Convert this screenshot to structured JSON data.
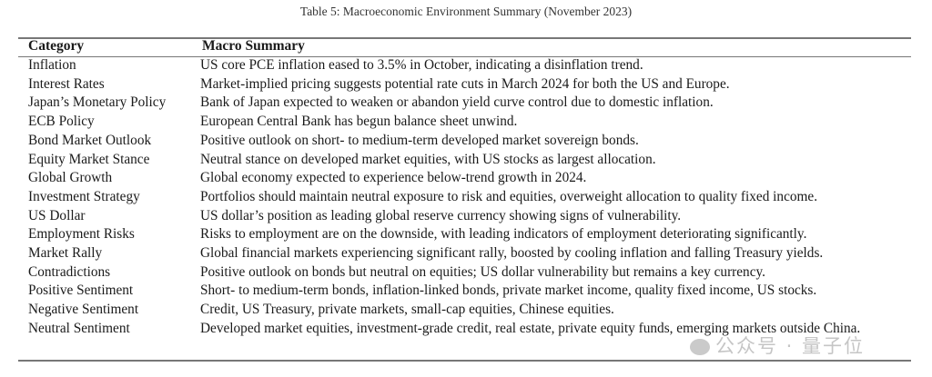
{
  "caption": "Table 5: Macroeconomic Environment Summary (November 2023)",
  "headers": {
    "category": "Category",
    "summary": "Macro Summary"
  },
  "rows": [
    {
      "category": "Inflation",
      "summary": "US core PCE inflation eased to 3.5% in October, indicating a disinflation trend."
    },
    {
      "category": "Interest Rates",
      "summary": "Market-implied pricing suggests potential rate cuts in March 2024 for both the US and Europe."
    },
    {
      "category": "Japan’s Monetary Policy",
      "summary": "Bank of Japan expected to weaken or abandon yield curve control due to domestic inflation."
    },
    {
      "category": "ECB Policy",
      "summary": "European Central Bank has begun balance sheet unwind."
    },
    {
      "category": "Bond Market Outlook",
      "summary": "Positive outlook on short- to medium-term developed market sovereign bonds."
    },
    {
      "category": "Equity Market Stance",
      "summary": "Neutral stance on developed market equities, with US stocks as largest allocation."
    },
    {
      "category": "Global Growth",
      "summary": "Global economy expected to experience below-trend growth in 2024."
    },
    {
      "category": "Investment Strategy",
      "summary": "Portfolios should maintain neutral exposure to risk and equities, overweight allocation to quality fixed income."
    },
    {
      "category": "US Dollar",
      "summary": "US dollar’s position as leading global reserve currency showing signs of vulnerability."
    },
    {
      "category": "Employment Risks",
      "summary": "Risks to employment are on the downside, with leading indicators of employment deteriorating significantly."
    },
    {
      "category": "Market Rally",
      "summary": "Global financial markets experiencing significant rally, boosted by cooling inflation and falling Treasury yields."
    },
    {
      "category": "Contradictions",
      "summary": "Positive outlook on bonds but neutral on equities; US dollar vulnerability but remains a key currency."
    },
    {
      "category": "Positive Sentiment",
      "summary": "Short- to medium-term bonds, inflation-linked bonds, private market income, quality fixed income, US stocks."
    },
    {
      "category": "Negative Sentiment",
      "summary": "Credit, US Treasury, private markets, small-cap equities, Chinese equities."
    },
    {
      "category": "Neutral Sentiment",
      "summary": "Developed market equities, investment-grade credit, real estate, private equity funds, emerging markets outside China."
    }
  ],
  "watermark": "公众号 · 量子位"
}
